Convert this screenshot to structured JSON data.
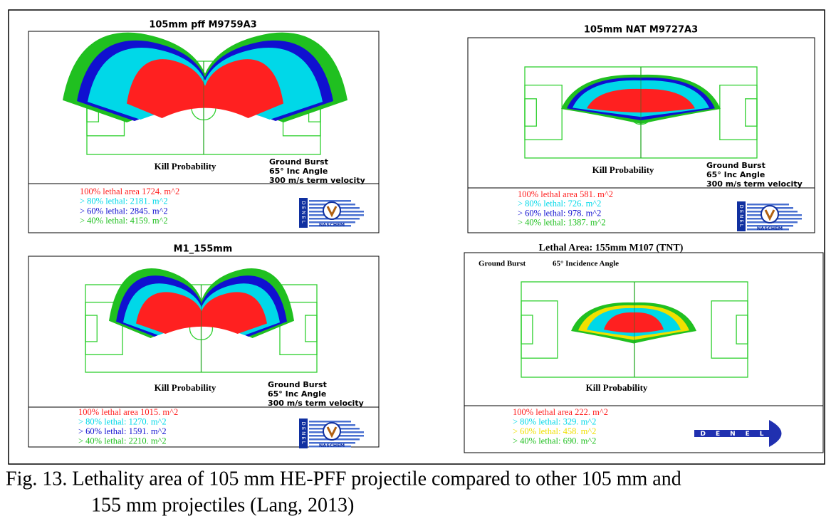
{
  "figure": {
    "panels": [
      {
        "title": "105mm pff M9759A3",
        "kill_label": "Kill Probability",
        "conditions": [
          "Ground Burst",
          "65° Inc Angle",
          "300 m/s term velocity"
        ],
        "legend": [
          {
            "text": "100% lethal area  1724. m^2",
            "color": "#ff2020"
          },
          {
            "text": "> 80% lethal:   2181. m^2",
            "color": "#00d8e8"
          },
          {
            "text": "> 60% lethal:   2845. m^2",
            "color": "#1010d0"
          },
          {
            "text": "> 40% lethal:   4159. m^2",
            "color": "#20c020"
          }
        ],
        "logo": "NASCHEM",
        "brand": "DENEL"
      },
      {
        "title": "105mm NAT   M9727A3",
        "kill_label": "Kill Probability",
        "conditions": [
          "Ground Burst",
          "65° Inc Angle",
          "300 m/s term velocity"
        ],
        "legend": [
          {
            "text": "100% lethal area   581. m^2",
            "color": "#ff2020"
          },
          {
            "text": "> 80% lethal:    726. m^2",
            "color": "#00d8e8"
          },
          {
            "text": "> 60% lethal:    978. m^2",
            "color": "#1010d0"
          },
          {
            "text": "> 40% lethal:   1387. m^2",
            "color": "#20c020"
          }
        ],
        "logo": "NASCHEM",
        "brand": "DENEL"
      },
      {
        "title": "M1_155mm",
        "kill_label": "Kill Probability",
        "conditions": [
          "Ground Burst",
          "65° Inc Angle",
          "300 m/s term velocity"
        ],
        "legend": [
          {
            "text": "100% lethal area  1015. m^2",
            "color": "#ff2020"
          },
          {
            "text": "> 80% lethal:   1270. m^2",
            "color": "#00d8e8"
          },
          {
            "text": "> 60% lethal:   1591. m^2",
            "color": "#1010d0"
          },
          {
            "text": "> 40% lethal:   2210. m^2",
            "color": "#20c020"
          }
        ],
        "logo": "NASCHEM",
        "brand": "DENEL"
      },
      {
        "title": "Lethal Area:  155mm M107 (TNT)",
        "kill_label": "Kill Probability",
        "conditions": [
          "Ground Burst",
          "65° Incidence Angle"
        ],
        "legend": [
          {
            "text": "100% lethal area  222. m^2",
            "color": "#ff2020"
          },
          {
            "text": "> 80% lethal:   329. m^2",
            "color": "#00d8e8"
          },
          {
            "text": "> 60% lethal:   458. m^2",
            "color": "#f0e000"
          },
          {
            "text": "> 40% lethal:   690. m^2",
            "color": "#20c020"
          }
        ],
        "brand": "DENEL"
      }
    ],
    "caption": [
      "Fig. 13.  Lethality area of 105 mm HE-PFF projectile compared to other 105 mm and",
      "155 mm projectiles (Lang, 2013)"
    ]
  }
}
